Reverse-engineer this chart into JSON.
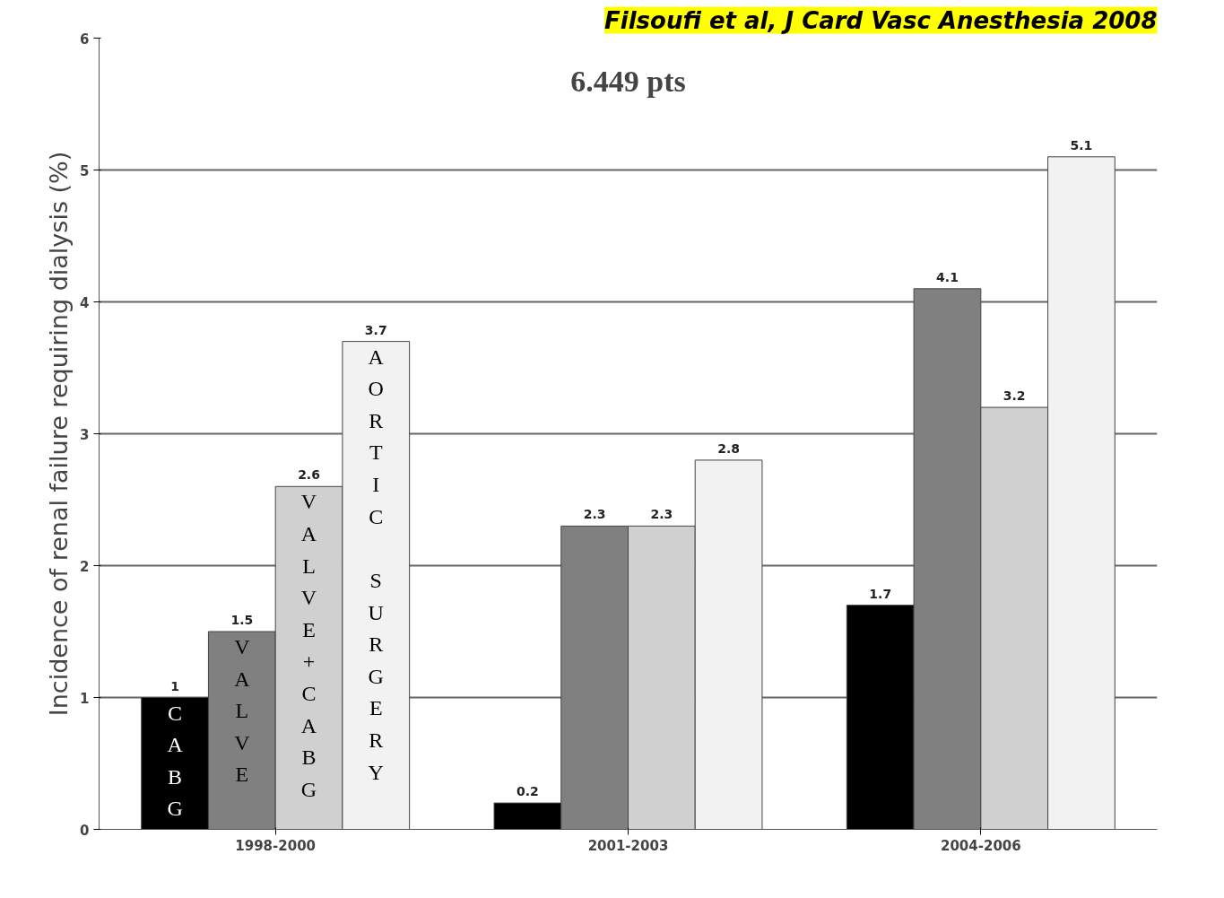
{
  "chart_data": {
    "type": "bar",
    "ylabel": "Incidence of renal failure requiring dialysis (%)",
    "categories": [
      "1998-2000",
      "2001-2003",
      "2004-2006"
    ],
    "series": [
      {
        "name": "CABG",
        "color": "#000000",
        "values": [
          1,
          0.2,
          1.7
        ]
      },
      {
        "name": "VALVE",
        "color": "#808080",
        "values": [
          1.5,
          2.3,
          4.1
        ]
      },
      {
        "name": "VALVE+CABG",
        "color": "#d0d0d0",
        "values": [
          2.6,
          2.3,
          3.2
        ]
      },
      {
        "name": "AORTIC SURGERY",
        "color": "#f2f2f2",
        "values": [
          3.7,
          2.8,
          5.1
        ]
      }
    ],
    "ylim": [
      0,
      6
    ],
    "yticks": [
      0,
      1,
      2,
      3,
      4,
      5,
      6
    ],
    "grid": "y",
    "data_labels": true,
    "annotations": [
      "Filsoufi et al, J Card Vasc Anesthesia 2008",
      "6.449 pts"
    ]
  }
}
